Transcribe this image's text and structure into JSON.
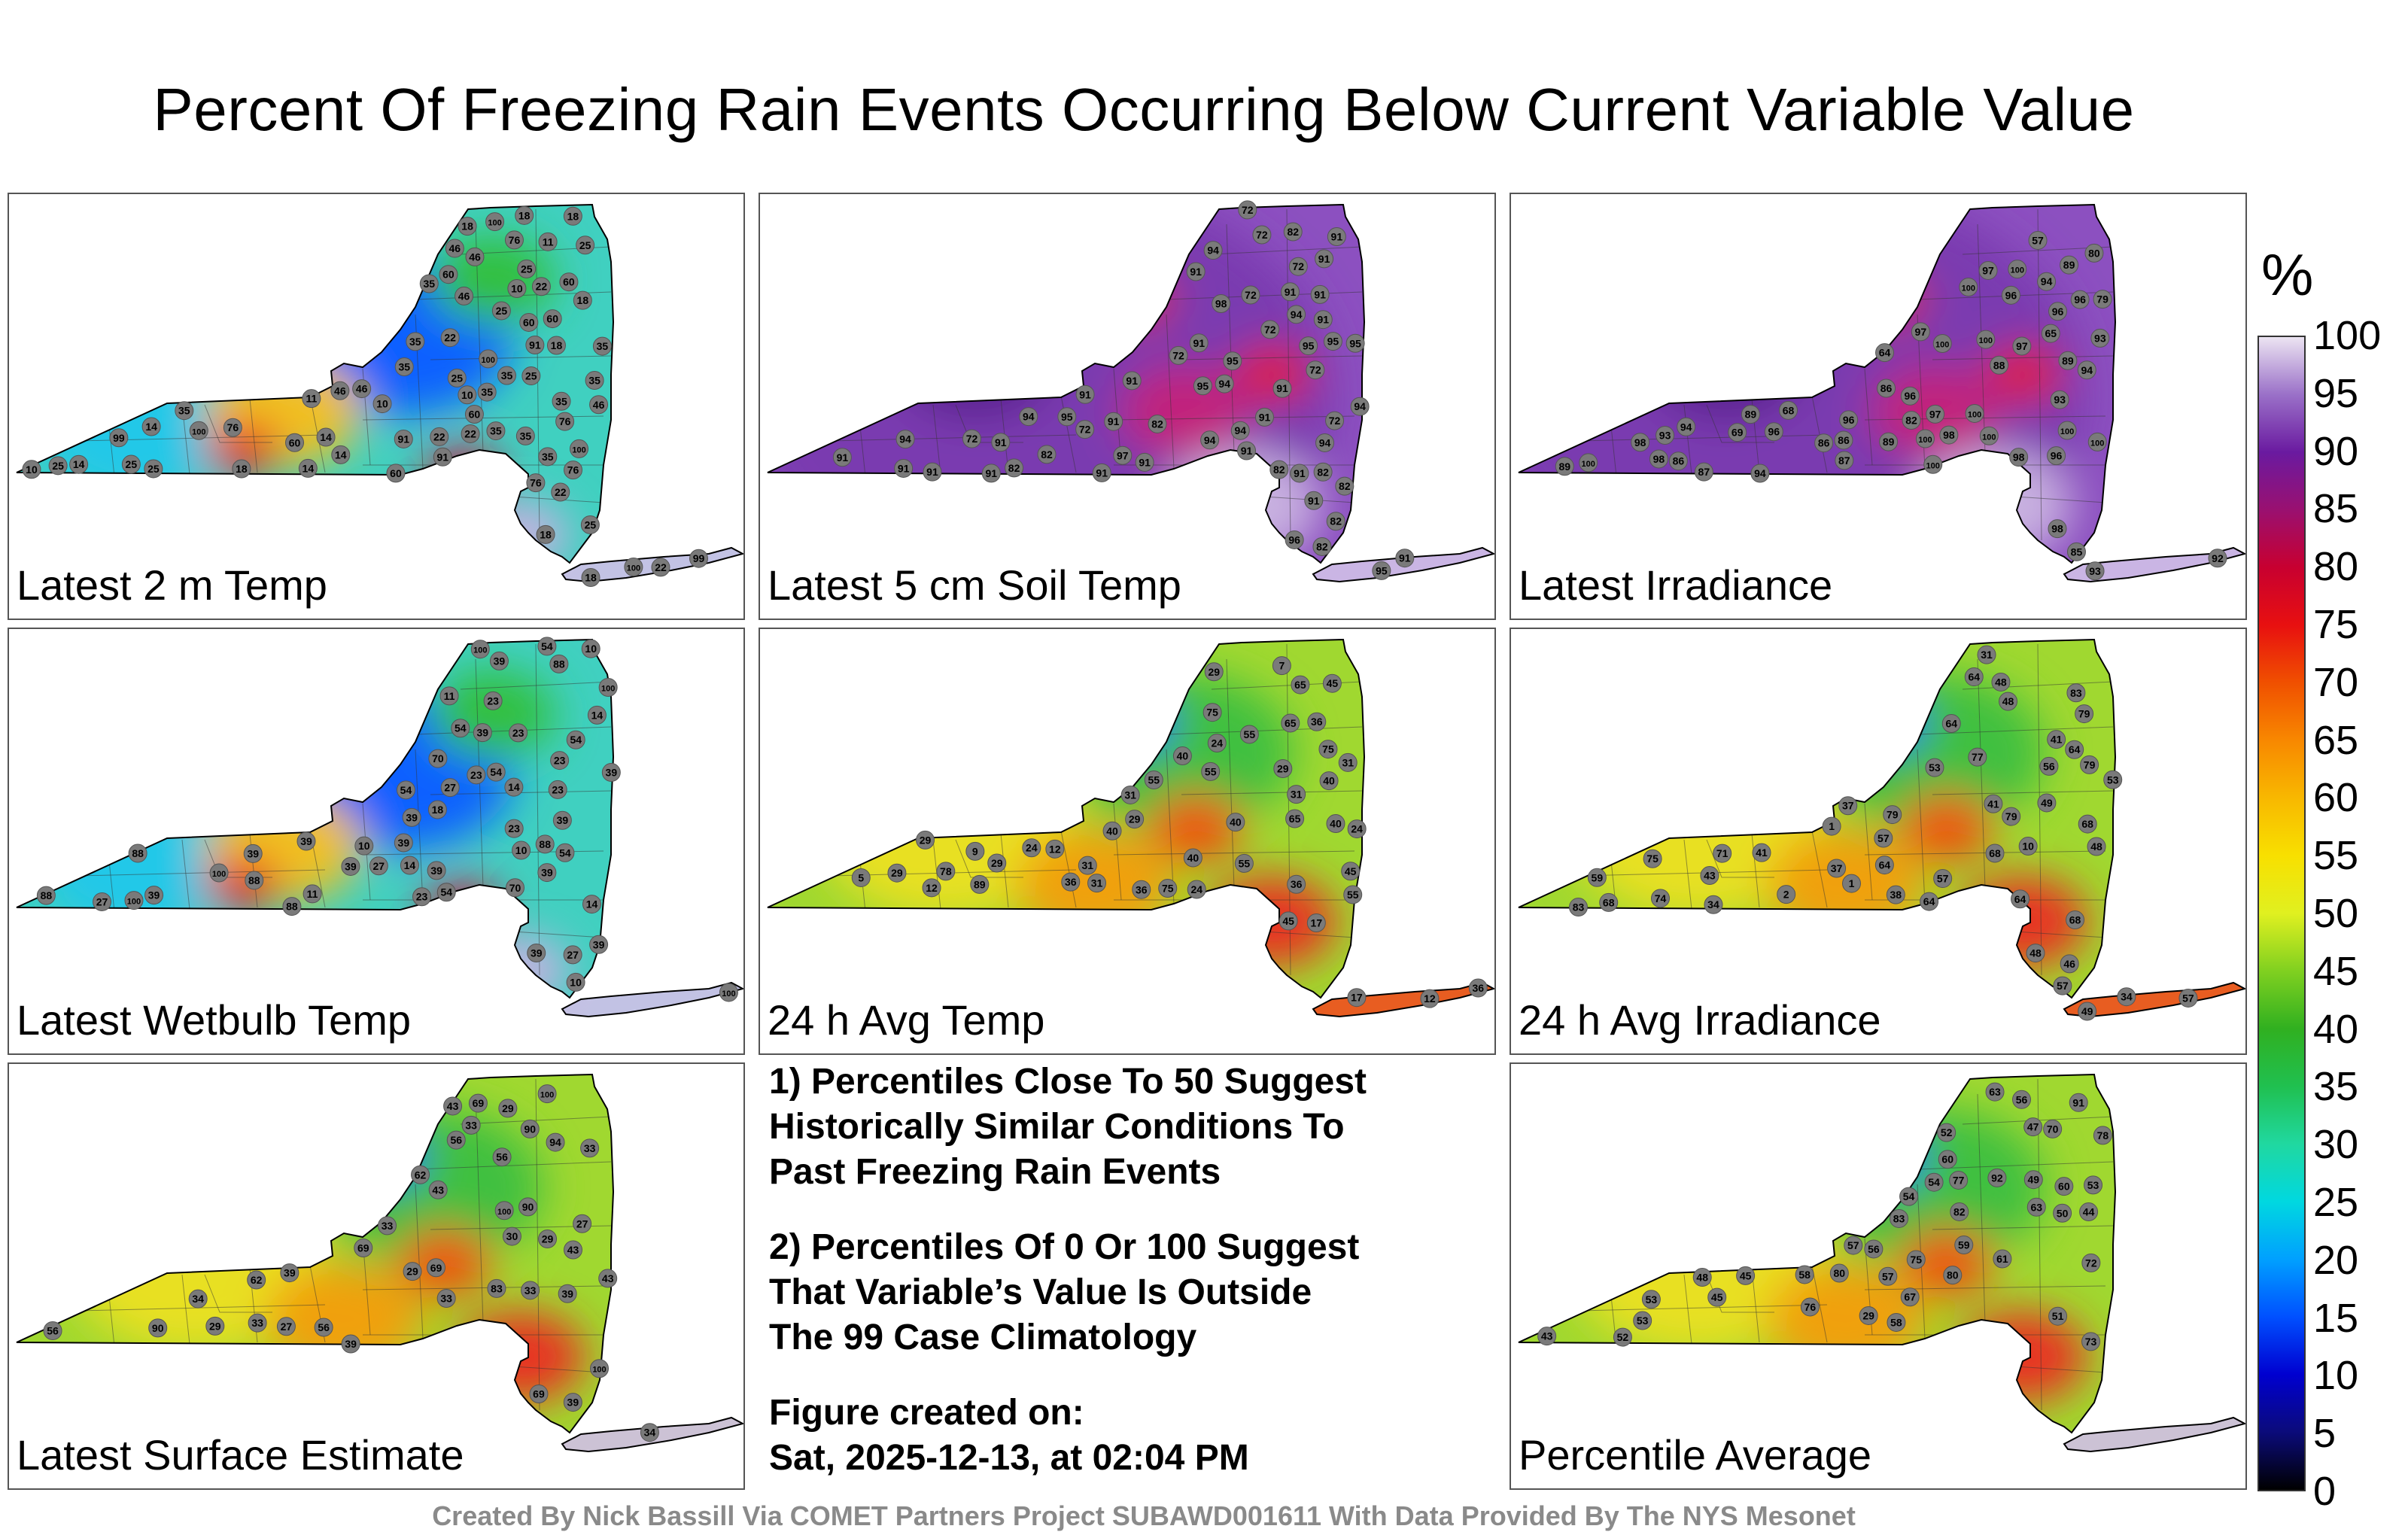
{
  "title": "Percent Of Freezing Rain Events Occurring Below Current Variable Value",
  "panels": [
    {
      "label": "Latest 2 m Temp",
      "palette": "low",
      "stations": [
        "46",
        "35",
        "35",
        "22",
        "76",
        "35",
        "25",
        "11",
        "14",
        "35",
        "25",
        "14",
        "18",
        "22",
        "46",
        "99",
        "25",
        "10",
        "11",
        "14",
        "18",
        "35",
        "14",
        "18",
        "35",
        "35",
        "10",
        "76",
        "46",
        "76",
        "91",
        "60",
        "46",
        "18",
        "22",
        "25",
        "18",
        "25",
        "35",
        "76",
        "99",
        "35",
        "60",
        "22",
        "25",
        "60",
        "46",
        "22",
        "60",
        "22",
        "18",
        "60",
        "18",
        "25",
        "46",
        "91",
        "35",
        "18",
        "35",
        "25",
        "10",
        "14",
        "25",
        "10",
        "60",
        "35",
        "76",
        "60",
        "91",
        "100",
        "100",
        "100",
        "100",
        "100"
      ]
    },
    {
      "label": "Latest 5 cm Soil Temp",
      "palette": "high",
      "stations": [
        "82",
        "91",
        "91",
        "94",
        "72",
        "91",
        "94",
        "97",
        "82",
        "95",
        "98",
        "72",
        "94",
        "82",
        "72",
        "91",
        "82",
        "91",
        "95",
        "94",
        "96",
        "72",
        "91",
        "91",
        "95",
        "91",
        "72",
        "91",
        "82",
        "95",
        "91",
        "94",
        "82",
        "95",
        "91",
        "94",
        "91",
        "91",
        "91",
        "94",
        "82",
        "91",
        "72",
        "91",
        "82",
        "72",
        "91",
        "72",
        "95",
        "91",
        "82",
        "72",
        "91",
        "94",
        "95",
        "91",
        "72",
        "94",
        "91",
        "91",
        "91"
      ]
    },
    {
      "label": "Latest Irradiance",
      "palette": "high",
      "stations": [
        "94",
        "96",
        "94",
        "98",
        "100",
        "79",
        "87",
        "89",
        "97",
        "100",
        "80",
        "57",
        "64",
        "65",
        "93",
        "82",
        "69",
        "68",
        "88",
        "89",
        "86",
        "100",
        "96",
        "92",
        "86",
        "93",
        "85",
        "97",
        "86",
        "87",
        "93",
        "89",
        "98",
        "89",
        "100",
        "86",
        "100",
        "96",
        "98",
        "94",
        "97",
        "100",
        "89",
        "96",
        "97",
        "96",
        "100",
        "93",
        "98",
        "96",
        "100",
        "100",
        "98",
        "94",
        "100",
        "100",
        "96"
      ]
    },
    {
      "label": "Latest Wetbulb Temp",
      "palette": "low",
      "stations": [
        "54",
        "39",
        "39",
        "39",
        "27",
        "11",
        "14",
        "23",
        "88",
        "88",
        "27",
        "39",
        "10",
        "11",
        "14",
        "39",
        "39",
        "88",
        "23",
        "54",
        "23",
        "14",
        "54",
        "39",
        "27",
        "10",
        "23",
        "54",
        "39",
        "88",
        "88",
        "54",
        "39",
        "23",
        "39",
        "23",
        "14",
        "18",
        "10",
        "27",
        "39",
        "54",
        "39",
        "23",
        "70",
        "39",
        "10",
        "54",
        "39",
        "70",
        "88",
        "100",
        "100",
        "100",
        "100",
        "100"
      ]
    },
    {
      "label": "24 h Avg Temp",
      "palette": "mid",
      "stations": [
        "7",
        "29",
        "9",
        "12",
        "31",
        "65",
        "17",
        "24",
        "36",
        "40",
        "31",
        "24",
        "29",
        "31",
        "40",
        "55",
        "45",
        "29",
        "45",
        "36",
        "31",
        "40",
        "55",
        "29",
        "24",
        "12",
        "17",
        "36",
        "29",
        "5",
        "12",
        "55",
        "40",
        "36",
        "29",
        "40",
        "45",
        "24",
        "55",
        "31",
        "36",
        "40",
        "55",
        "65",
        "75",
        "89",
        "75",
        "78",
        "65",
        "75"
      ]
    },
    {
      "label": "24 h Avg Irradiance",
      "palette": "mid",
      "stations": [
        "53",
        "68",
        "64",
        "57",
        "37",
        "48",
        "49",
        "57",
        "46",
        "10",
        "1",
        "1",
        "2",
        "64",
        "37",
        "41",
        "31",
        "34",
        "43",
        "79",
        "64",
        "57",
        "68",
        "79",
        "64",
        "71",
        "83",
        "79",
        "57",
        "49",
        "48",
        "56",
        "41",
        "64",
        "38",
        "48",
        "53",
        "34",
        "68",
        "41",
        "68",
        "64",
        "59",
        "74",
        "79",
        "77",
        "83",
        "75",
        "48"
      ]
    },
    {
      "label": "Latest Surface Estimate",
      "palette": "mid",
      "stations": [
        "39",
        "30",
        "33",
        "27",
        "29",
        "56",
        "69",
        "56",
        "33",
        "27",
        "29",
        "39",
        "43",
        "90",
        "83",
        "69",
        "56",
        "33",
        "43",
        "39",
        "33",
        "29",
        "62",
        "69",
        "90",
        "62",
        "56",
        "34",
        "43",
        "33",
        "43",
        "39",
        "29",
        "69",
        "33",
        "34",
        "90",
        "94",
        "100",
        "100",
        "100"
      ]
    },
    {
      "label": "Percentile Average",
      "palette": "mid",
      "stations": [
        "54",
        "56",
        "53",
        "60",
        "45",
        "43",
        "52",
        "75",
        "73",
        "72",
        "54",
        "29",
        "44",
        "60",
        "47",
        "76",
        "82",
        "61",
        "59",
        "56",
        "58",
        "58",
        "53",
        "63",
        "80",
        "57",
        "70",
        "52",
        "45",
        "50",
        "53",
        "48",
        "63",
        "83",
        "67",
        "51",
        "57",
        "77",
        "78",
        "80",
        "91",
        "92",
        "49"
      ]
    }
  ],
  "notes": {
    "note1_line1": "1) Percentiles Close To 50 Suggest",
    "note1_line2": "Historically Similar Conditions To",
    "note1_line3": "Past Freezing Rain Events",
    "note2_line1": "2) Percentiles Of 0 Or 100 Suggest",
    "note2_line2": "That Variable’s Value Is Outside",
    "note2_line3": "The 99 Case Climatology",
    "created_label": "Figure created on:",
    "created_value": "Sat, 2025-12-13, at 02:04 PM"
  },
  "colorbar": {
    "unit": "%",
    "ticks": [
      "100",
      "95",
      "90",
      "85",
      "80",
      "75",
      "70",
      "65",
      "60",
      "55",
      "50",
      "45",
      "40",
      "35",
      "30",
      "25",
      "20",
      "15",
      "10",
      "5",
      "0"
    ],
    "min": 0,
    "max": 100
  },
  "footer": "Created By Nick Bassill Via COMET Partners Project SUBAWD001611 With Data Provided By The NYS Mesonet"
}
